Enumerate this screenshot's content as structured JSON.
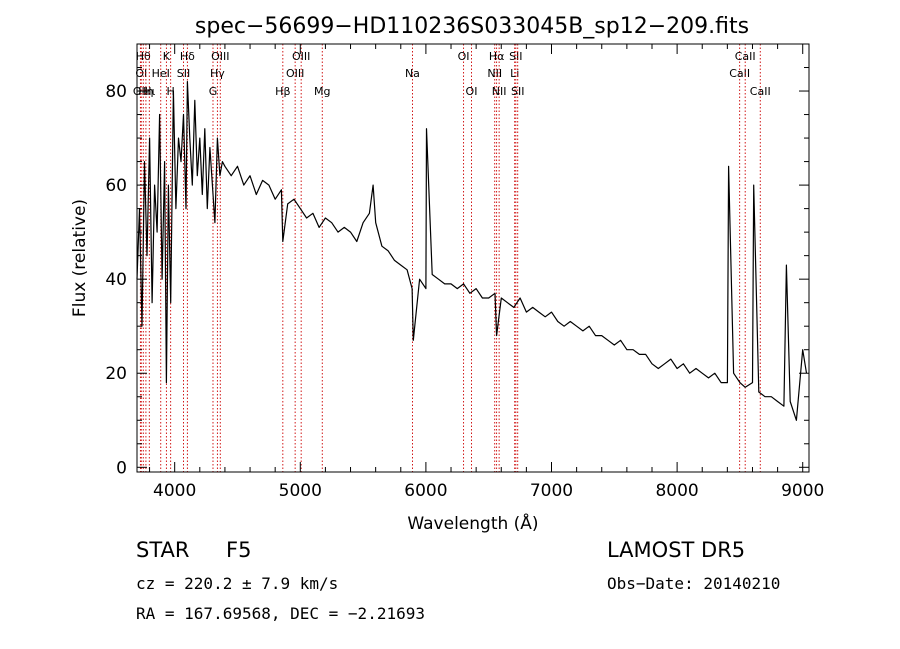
{
  "chart_data": {
    "type": "line",
    "title": "spec−56699−HD110236S033045B_sp12−209.fits",
    "xlabel": "Wavelength (Å)",
    "ylabel": "Flux (relative)",
    "xlim": [
      3700,
      9050
    ],
    "ylim": [
      -1,
      90
    ],
    "xticks": [
      4000,
      5000,
      6000,
      7000,
      8000,
      9000
    ],
    "yticks": [
      0,
      20,
      40,
      60,
      80
    ],
    "grid": false,
    "line_color": "#000000",
    "marker_color": "#cc0000",
    "series": [
      {
        "x": [
          3700,
          3720,
          3740,
          3760,
          3780,
          3800,
          3820,
          3840,
          3860,
          3880,
          3900,
          3920,
          3934,
          3950,
          3968,
          3990,
          4010,
          4030,
          4050,
          4070,
          4090,
          4101,
          4120,
          4140,
          4160,
          4180,
          4200,
          4220,
          4240,
          4260,
          4280,
          4300,
          4320,
          4340,
          4360,
          4380,
          4400,
          4450,
          4500,
          4550,
          4600,
          4650,
          4700,
          4750,
          4800,
          4850,
          4861,
          4900,
          4950,
          5000,
          5050,
          5100,
          5150,
          5200,
          5250,
          5300,
          5350,
          5400,
          5450,
          5500,
          5550,
          5580,
          5600,
          5650,
          5700,
          5750,
          5800,
          5850,
          5890,
          5900,
          5950,
          6000,
          6005,
          6050,
          6100,
          6150,
          6200,
          6250,
          6300,
          6350,
          6400,
          6450,
          6500,
          6550,
          6563,
          6600,
          6650,
          6700,
          6750,
          6800,
          6850,
          6900,
          6950,
          7000,
          7050,
          7100,
          7150,
          7200,
          7250,
          7300,
          7350,
          7400,
          7450,
          7500,
          7550,
          7600,
          7650,
          7700,
          7750,
          7800,
          7850,
          7900,
          7950,
          8000,
          8050,
          8100,
          8150,
          8200,
          8250,
          8300,
          8350,
          8400,
          8410,
          8450,
          8500,
          8542,
          8600,
          8610,
          8650,
          8700,
          8750,
          8800,
          8850,
          8870,
          8900,
          8950,
          9000,
          9030
        ],
        "y": [
          40,
          55,
          30,
          65,
          45,
          70,
          35,
          60,
          50,
          75,
          40,
          65,
          18,
          60,
          35,
          80,
          55,
          70,
          65,
          75,
          55,
          82,
          70,
          60,
          78,
          62,
          70,
          58,
          72,
          55,
          68,
          60,
          52,
          70,
          62,
          65,
          64,
          62,
          64,
          60,
          62,
          58,
          61,
          60,
          57,
          59,
          48,
          56,
          57,
          55,
          53,
          54,
          51,
          53,
          52,
          50,
          51,
          50,
          48,
          52,
          54,
          60,
          52,
          47,
          46,
          44,
          43,
          42,
          38,
          27,
          40,
          38,
          72,
          41,
          40,
          39,
          39,
          38,
          39,
          37,
          38,
          36,
          36,
          37,
          28,
          36,
          35,
          34,
          36,
          33,
          34,
          33,
          32,
          33,
          31,
          30,
          31,
          30,
          29,
          30,
          28,
          28,
          27,
          26,
          27,
          25,
          25,
          24,
          24,
          22,
          21,
          22,
          23,
          21,
          22,
          20,
          21,
          20,
          19,
          20,
          18,
          18,
          64,
          20,
          18,
          17,
          18,
          60,
          16,
          15,
          15,
          14,
          13,
          43,
          14,
          10,
          25,
          20
        ]
      }
    ],
    "line_markers": [
      {
        "name": "OII",
        "x": 3727,
        "row": 3
      },
      {
        "name": "OI",
        "x": 3734,
        "row": 2
      },
      {
        "name": "Hθ",
        "x": 3750,
        "row": 1
      },
      {
        "name": "Hη",
        "x": 3771,
        "row": 3
      },
      {
        "name": "Hι",
        "x": 3798,
        "row": 3
      },
      {
        "name": "HeI",
        "x": 3889,
        "row": 2
      },
      {
        "name": "K",
        "x": 3934,
        "row": 1
      },
      {
        "name": "H",
        "x": 3968,
        "row": 3
      },
      {
        "name": "SII",
        "x": 4070,
        "row": 2
      },
      {
        "name": "Hδ",
        "x": 4101,
        "row": 1
      },
      {
        "name": "G",
        "x": 4305,
        "row": 3
      },
      {
        "name": "Hγ",
        "x": 4340,
        "row": 2
      },
      {
        "name": "OIII",
        "x": 4363,
        "row": 1
      },
      {
        "name": "Hβ",
        "x": 4861,
        "row": 3
      },
      {
        "name": "OIII",
        "x": 4959,
        "row": 2
      },
      {
        "name": "OIII",
        "x": 5007,
        "row": 1
      },
      {
        "name": "Mg",
        "x": 5175,
        "row": 3
      },
      {
        "name": "Na",
        "x": 5893,
        "row": 2
      },
      {
        "name": "OI",
        "x": 6300,
        "row": 1
      },
      {
        "name": "OI",
        "x": 6363,
        "row": 3
      },
      {
        "name": "NII",
        "x": 6548,
        "row": 2
      },
      {
        "name": "Hα",
        "x": 6563,
        "row": 1
      },
      {
        "name": "NII",
        "x": 6583,
        "row": 3
      },
      {
        "name": "Li",
        "x": 6707,
        "row": 2
      },
      {
        "name": "SII",
        "x": 6716,
        "row": 1
      },
      {
        "name": "SII",
        "x": 6731,
        "row": 3
      },
      {
        "name": "CaII",
        "x": 8498,
        "row": 2
      },
      {
        "name": "CaII",
        "x": 8542,
        "row": 1
      },
      {
        "name": "CaII",
        "x": 8662,
        "row": 3
      }
    ]
  },
  "info": {
    "object_class": "STAR",
    "subclass": "F5",
    "survey": "LAMOST DR5",
    "cz": "cz = 220.2 ± 7.9 km/s",
    "obs_date": "Obs−Date: 20140210",
    "coords": "RA = 167.69568, DEC =  −2.21693"
  }
}
